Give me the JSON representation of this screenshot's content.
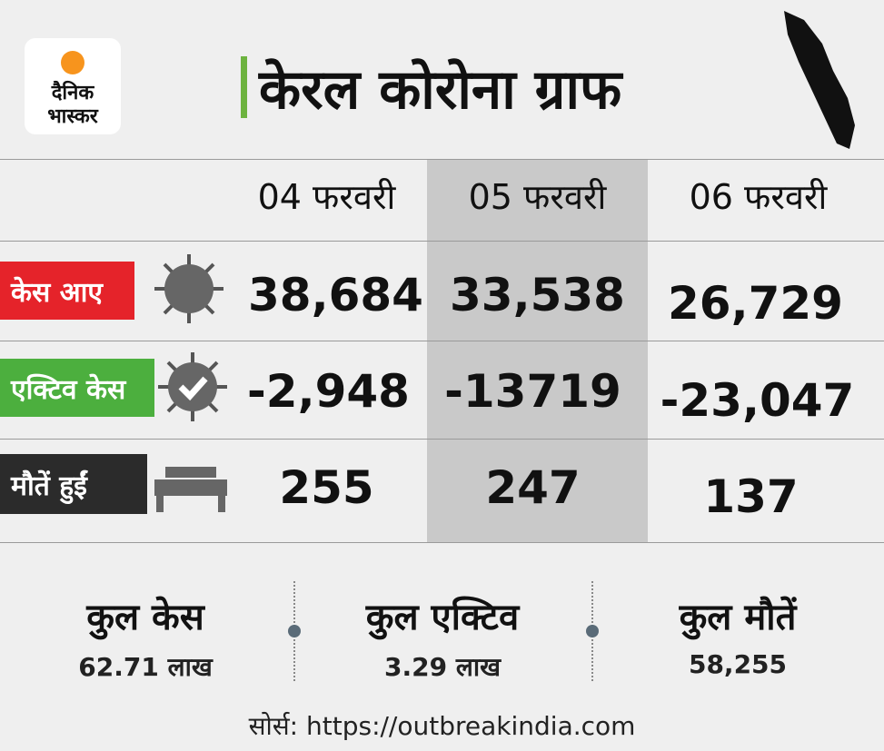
{
  "logo": {
    "line1": "दैनिक",
    "line2": "भास्कर"
  },
  "title": "केरल कोरोना ग्राफ",
  "table": {
    "columns": [
      "04 फरवरी",
      "05 फरवरी",
      "06 फरवरी"
    ],
    "rows": [
      {
        "label": "केस आए",
        "values": [
          "38,684",
          "33,538",
          "26,729"
        ]
      },
      {
        "label": "एक्टिव केस",
        "values": [
          "-2,948",
          "-13719",
          "-23,047"
        ]
      },
      {
        "label": "मौतें हुईं",
        "values": [
          "255",
          "247",
          "137"
        ]
      }
    ]
  },
  "totals": [
    {
      "label": "कुल केस",
      "value": "62.71 लाख"
    },
    {
      "label": "कुल एक्टिव",
      "value": "3.29 लाख"
    },
    {
      "label": "कुल मौतें",
      "value": "58,255"
    }
  ],
  "source": "सोर्स: https://outbreakindia.com"
}
